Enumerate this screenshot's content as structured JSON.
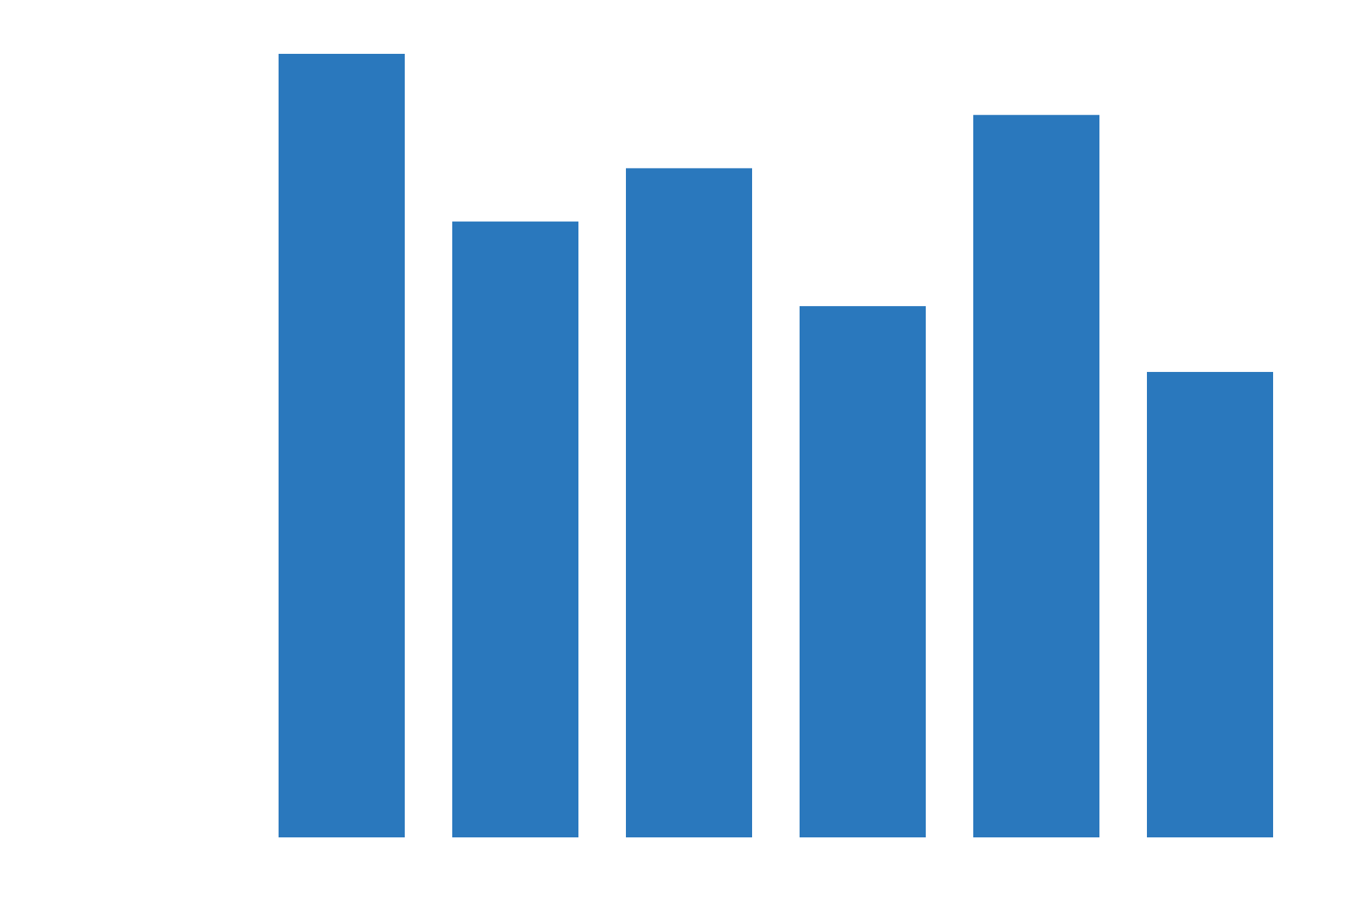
{
  "chart_data": {
    "type": "bar",
    "categories": [
      "",
      "",
      "",
      "",
      "",
      ""
    ],
    "values": [
      100,
      78.6,
      85.4,
      67.8,
      92.2,
      59.4
    ],
    "title": "",
    "xlabel": "",
    "ylabel": "",
    "ylim": [
      0,
      100
    ],
    "grid": false,
    "legend": "none",
    "bar_color": "#2a78bd"
  }
}
